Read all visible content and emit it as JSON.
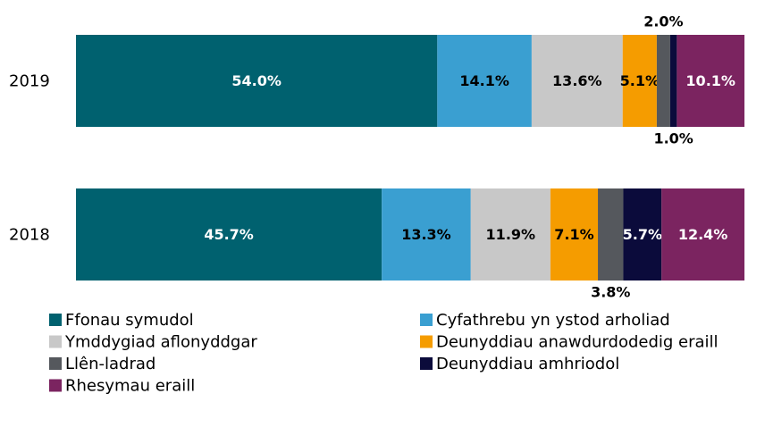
{
  "chart_data": {
    "type": "stacked-bar-horizontal",
    "categories": [
      "2019",
      "2018"
    ],
    "series": [
      {
        "name": "Ffonau symudol",
        "color": "#00616f",
        "values": [
          54.0,
          45.7
        ],
        "value_labels": [
          "54.0%",
          "45.7%"
        ]
      },
      {
        "name": "Cyfathrebu yn ystod arholiad",
        "color": "#3a9fd1",
        "values": [
          14.1,
          13.3
        ],
        "value_labels": [
          "14.1%",
          "13.3%"
        ]
      },
      {
        "name": "Ymddygiad aflonyddgar",
        "color": "#c8c8c8",
        "values": [
          13.6,
          11.9
        ],
        "value_labels": [
          "13.6%",
          "11.9%"
        ]
      },
      {
        "name": "Deunyddiau anawdurdodedig eraill",
        "color": "#f59c00",
        "values": [
          5.1,
          7.1
        ],
        "value_labels": [
          "5.1%",
          "7.1%"
        ]
      },
      {
        "name": "Llên-ladrad",
        "color": "#55585d",
        "values": [
          2.0,
          3.8
        ],
        "value_labels": [
          "2.0%",
          "3.8%"
        ]
      },
      {
        "name": "Deunyddiau amhriodol",
        "color": "#0b0b3b",
        "values": [
          1.0,
          5.7
        ],
        "value_labels": [
          "1.0%",
          "5.7%"
        ]
      },
      {
        "name": "Rhesymau eraill",
        "color": "#7b2460",
        "values": [
          10.1,
          12.4
        ],
        "value_labels": [
          "10.1%",
          "12.4%"
        ]
      }
    ]
  }
}
